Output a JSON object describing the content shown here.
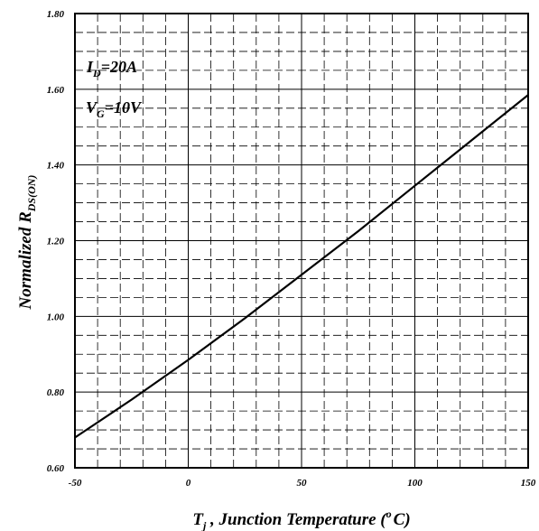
{
  "chart_data": {
    "type": "line",
    "title": "",
    "xlabel": {
      "symbol": "T",
      "sub": "j",
      "text": " , Junction Temperature (",
      "sup": "o",
      "unit": "C)"
    },
    "ylabel": {
      "text": "Normalized R",
      "sub": "DS(ON)"
    },
    "xlim": [
      -50,
      150
    ],
    "ylim": [
      0.6,
      1.8
    ],
    "x_ticks": [
      -50,
      0,
      50,
      100,
      150
    ],
    "x_tick_labels": [
      "-50",
      "0",
      "50",
      "100",
      "150"
    ],
    "y_ticks": [
      0.6,
      0.8,
      1.0,
      1.2,
      1.4,
      1.6,
      1.8
    ],
    "y_tick_labels": [
      "0.60",
      "0.80",
      "1.00",
      "1.20",
      "1.40",
      "1.60",
      "1.80"
    ],
    "grid": true,
    "series": [
      {
        "x": [
          -50,
          -25,
          0,
          25,
          50,
          75,
          100,
          125,
          150
        ],
        "y": [
          0.68,
          0.78,
          0.885,
          0.995,
          1.11,
          1.225,
          1.345,
          1.465,
          1.585
        ]
      }
    ],
    "annotations": [
      {
        "main": "I",
        "sub": "D",
        "rest": "=20A"
      },
      {
        "main": "V",
        "sub": "G",
        "rest": "=10V"
      }
    ]
  }
}
